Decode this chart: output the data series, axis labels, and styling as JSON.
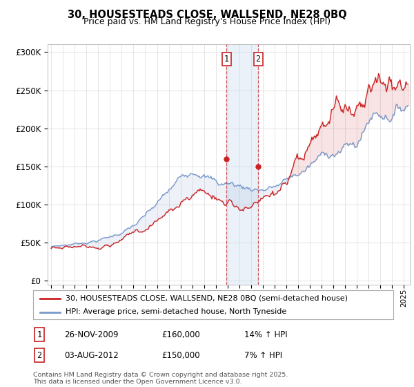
{
  "title": "30, HOUSESTEADS CLOSE, WALLSEND, NE28 0BQ",
  "subtitle": "Price paid vs. HM Land Registry's House Price Index (HPI)",
  "ylabel_ticks": [
    "£0",
    "£50K",
    "£100K",
    "£150K",
    "£200K",
    "£250K",
    "£300K"
  ],
  "ytick_values": [
    0,
    50000,
    100000,
    150000,
    200000,
    250000,
    300000
  ],
  "ylim": [
    -5000,
    310000
  ],
  "xlim_start": 1994.7,
  "xlim_end": 2025.5,
  "line1_color": "#cc2222",
  "line2_color": "#7799cc",
  "marker1_date": 2009.9,
  "marker2_date": 2012.6,
  "marker1_price": 160000,
  "marker2_price": 150000,
  "legend_line1": "30, HOUSESTEADS CLOSE, WALLSEND, NE28 0BQ (semi-detached house)",
  "legend_line2": "HPI: Average price, semi-detached house, North Tyneside",
  "annotation1_label": "1",
  "annotation1_date": "26-NOV-2009",
  "annotation1_price": "£160,000",
  "annotation1_hpi": "14% ↑ HPI",
  "annotation2_label": "2",
  "annotation2_date": "03-AUG-2012",
  "annotation2_price": "£150,000",
  "annotation2_hpi": "7% ↑ HPI",
  "footer": "Contains HM Land Registry data © Crown copyright and database right 2025.\nThis data is licensed under the Open Government Licence v3.0.",
  "background_color": "#ffffff",
  "grid_color": "#e0e0e0",
  "title_fontsize": 10.5,
  "subtitle_fontsize": 9
}
